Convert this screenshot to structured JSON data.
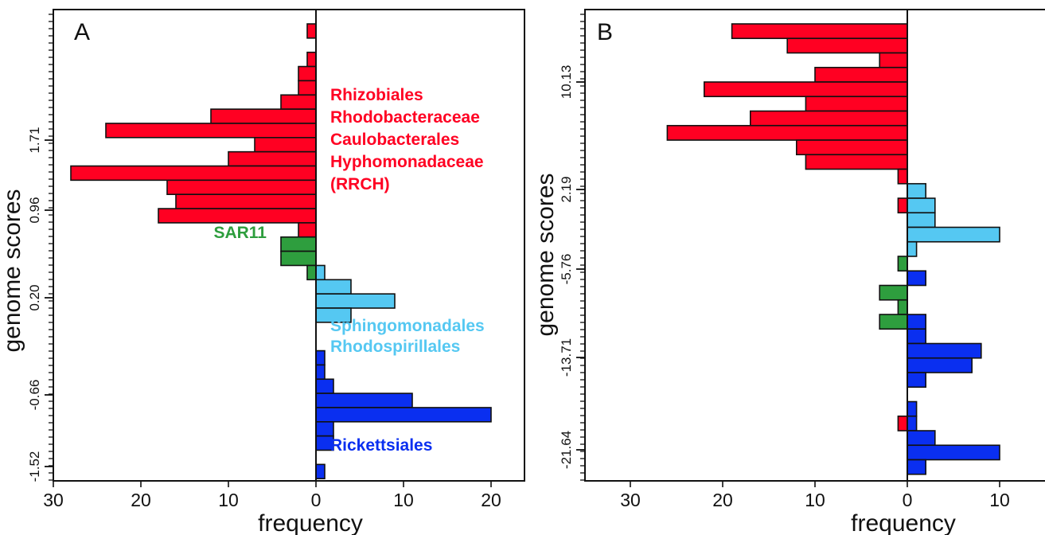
{
  "colors": {
    "red": "#ff0022",
    "lightblue": "#55c8f2",
    "green": "#2e9e3e",
    "blue": "#0a2ff0",
    "stroke": "#111111"
  },
  "chart_data": [
    {
      "type": "bar",
      "orientation": "horizontal",
      "panel_label": "A",
      "xlabel": "frequency",
      "ylabel": "genome scores",
      "x_tick_labels": [
        "30",
        "20",
        "10",
        "0",
        "10",
        "20"
      ],
      "y_tick_labels": [
        "-1.52",
        "-0.66",
        "0.20",
        "0.96",
        "1.71"
      ],
      "xlim_left": 30,
      "xlim_right": 24,
      "n_bins": 32,
      "left_series": [
        {
          "name": "RRCH",
          "color_key": "red",
          "bin_start": 0,
          "values": [
            1,
            0,
            1,
            2,
            2,
            4,
            12,
            24,
            7,
            10,
            28,
            17,
            16,
            18,
            2,
            1,
            0
          ]
        },
        {
          "name": "SAR11",
          "color_key": "green",
          "bin_start": 15,
          "values": [
            4,
            4,
            1
          ]
        }
      ],
      "right_series": [
        {
          "name": "Sphingomonadales Rhodospirillales",
          "color_key": "lightblue",
          "bin_start": 17,
          "values": [
            1,
            4,
            9,
            4
          ]
        },
        {
          "name": "Rickettsiales",
          "color_key": "blue",
          "bin_start": 23,
          "values": [
            1,
            1,
            2,
            11,
            20,
            2,
            2,
            0,
            1
          ]
        }
      ],
      "group_labels": [
        {
          "lines": [
            "Rhizobiales",
            "Rhodobacteraceae",
            "Caulobacterales",
            "Hyphomonadaceae",
            "(RRCH)"
          ],
          "color_key": "red"
        },
        {
          "lines": [
            "SAR11"
          ],
          "color_key": "green"
        },
        {
          "lines": [
            "Sphingomonadales",
            "Rhodospirillales"
          ],
          "color_key": "lightblue"
        },
        {
          "lines": [
            "Rickettsiales"
          ],
          "color_key": "blue"
        }
      ]
    },
    {
      "type": "bar",
      "orientation": "horizontal",
      "panel_label": "B",
      "xlabel": "frequency",
      "ylabel": "genome scores",
      "x_tick_labels": [
        "30",
        "20",
        "10",
        "0",
        "10"
      ],
      "y_tick_labels": [
        "-21.64",
        "-13.71",
        "-5.76",
        "2.19",
        "10.13"
      ],
      "xlim_left": 35,
      "xlim_right": 15,
      "n_bins": 32,
      "left_series": [
        {
          "name": "RRCH",
          "color_key": "red",
          "bin_start": 0,
          "values": [
            19,
            13,
            3,
            10,
            22,
            11,
            17,
            26,
            12,
            11,
            1,
            0,
            1
          ]
        },
        {
          "name": "SAR11",
          "color_key": "green",
          "bin_start": 16,
          "values": [
            1,
            0,
            3,
            1,
            3
          ]
        },
        {
          "name": "Rickettsiales",
          "color_key": "red",
          "bin_start": 27,
          "values": [
            1
          ]
        }
      ],
      "right_series": [
        {
          "name": "Sphingomonadales Rhodospirillales",
          "color_key": "lightblue",
          "bin_start": 11,
          "values": [
            2,
            3,
            3,
            10,
            1
          ]
        },
        {
          "name": "Rickettsiales",
          "color_key": "blue",
          "bin_start": 17,
          "values": [
            2,
            0,
            0,
            2,
            2,
            8,
            7,
            2,
            0,
            1,
            1,
            3,
            10,
            2
          ]
        }
      ]
    }
  ]
}
